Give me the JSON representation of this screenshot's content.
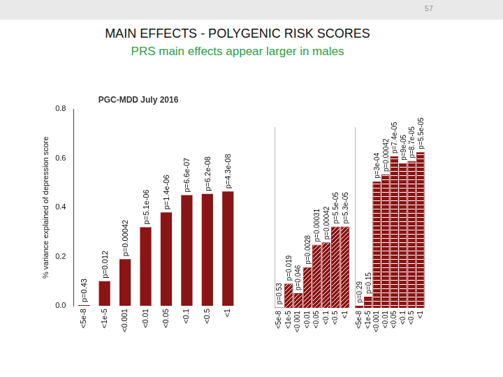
{
  "slide": {
    "page_number": "57",
    "title": "MAIN EFFECTS - POLYGENIC RISK SCORES",
    "subtitle": "PRS main effects appear larger in males"
  },
  "chart_data": [
    {
      "type": "bar",
      "title": "PGC-MDD July 2016",
      "y_label": "% variance explained of depression score",
      "categories": [
        "<5e-8",
        "<1e-5",
        "<0.001",
        "<0.01",
        "<0.05",
        "<0.1",
        "<0.5",
        "<1"
      ],
      "values": [
        0.003,
        0.1,
        0.19,
        0.32,
        0.38,
        0.45,
        0.455,
        0.465
      ],
      "annotations": [
        "p=0.43",
        "p=0.012",
        "p=0.00042",
        "p=5.1e-06",
        "p=1.4e-06",
        "p=6.6e-07",
        "p=6.2e-08",
        "p=4.3e-08"
      ],
      "color": "#8b1414",
      "ylim": [
        0,
        0.8
      ],
      "yticks": [
        {
          "value": 0,
          "label": "0.0"
        },
        0.2,
        0.4,
        0.6,
        0.8
      ],
      "grid": false
    },
    {
      "type": "bar",
      "categories": [
        "<5e-8",
        "<1e-5",
        "<0.001",
        "<0.01",
        "<0.05",
        "<0.1",
        "<0.5",
        "<1"
      ],
      "values": [
        0.003,
        0.108,
        0.065,
        0.18,
        0.28,
        0.29,
        0.36,
        0.36
      ],
      "annotations": [
        "p=0.53",
        "p=0.019",
        "p=0.046",
        "p=0.0028",
        "p=0.00031",
        "p=0.00042",
        "p=5.5e-05",
        "p=5.3e-05"
      ],
      "color": "#8b1414",
      "ylim": [
        0,
        0.8
      ],
      "grid": false,
      "tick_labels": "x"
    },
    {
      "type": "bar",
      "categories": [
        "<5e-8",
        "<1e-5",
        "<0.001",
        "<0.01",
        "<0.05",
        "<0.1",
        "<0.5",
        "<1"
      ],
      "values": [
        0.01,
        0.05,
        0.56,
        0.59,
        0.67,
        0.64,
        0.65,
        0.69
      ],
      "annotations": [
        "p=0.29",
        "p=0.15",
        "p=3e-04",
        "p=0.00042",
        "p=7.4e-05",
        "p=9e-05",
        "p=8.7e-05",
        "p=5.5e-05"
      ],
      "color": "#8b1414",
      "ylim": [
        0,
        0.8
      ],
      "grid": false,
      "tick_labels": "x"
    }
  ]
}
